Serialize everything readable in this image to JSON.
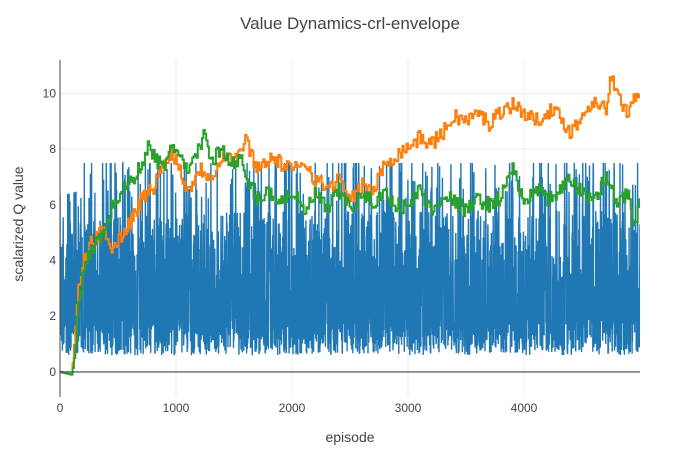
{
  "chart_data": {
    "type": "line",
    "title": "Value Dynamics-crl-envelope",
    "xlabel": "episode",
    "ylabel": "scalarized Q value",
    "xlim": [
      0,
      5000
    ],
    "ylim": [
      -0.9,
      11.2
    ],
    "grid": true,
    "legend": "none",
    "xticks": [
      0,
      1000,
      2000,
      3000,
      4000
    ],
    "yticks": [
      0,
      2,
      4,
      6,
      8,
      10
    ],
    "series": [
      {
        "color": "#1f77b4",
        "style": "noisy-band",
        "x": [
          0,
          100,
          150,
          200,
          500,
          1000,
          2000,
          3000,
          4000,
          5000
        ],
        "low": [
          0.6,
          0.6,
          0.6,
          0.6,
          0.6,
          0.6,
          0.6,
          0.6,
          0.6,
          0.6
        ],
        "high": [
          4.8,
          5.0,
          5.3,
          5.5,
          5.7,
          5.7,
          5.8,
          5.8,
          5.8,
          5.8
        ],
        "spike_max": [
          6.4,
          6.4,
          6.5,
          7.5,
          7.5,
          7.5,
          7.5,
          7.5,
          7.5,
          7.5
        ]
      },
      {
        "color": "#ff7f0e",
        "x": [
          0,
          100,
          130,
          150,
          200,
          250,
          300,
          380,
          420,
          450,
          500,
          600,
          700,
          800,
          850,
          950,
          1000,
          1100,
          1200,
          1300,
          1400,
          1500,
          1600,
          1700,
          1800,
          1900,
          2000,
          2100,
          2200,
          2300,
          2400,
          2500,
          2600,
          2700,
          2800,
          2900,
          3000,
          3100,
          3200,
          3300,
          3400,
          3500,
          3600,
          3700,
          3800,
          3900,
          4000,
          4100,
          4200,
          4300,
          4400,
          4500,
          4600,
          4700,
          4750,
          4800,
          4900,
          4950,
          5000
        ],
        "y": [
          0.0,
          -0.1,
          1.5,
          2.8,
          3.9,
          4.5,
          4.8,
          5.1,
          4.8,
          4.4,
          4.7,
          5.4,
          6.2,
          6.6,
          7.1,
          7.9,
          7.6,
          6.5,
          7.3,
          7.0,
          7.8,
          7.6,
          8.3,
          7.3,
          7.7,
          7.5,
          7.2,
          7.6,
          6.9,
          6.6,
          6.9,
          6.1,
          6.7,
          6.5,
          7.5,
          7.8,
          8.1,
          8.4,
          8.2,
          8.6,
          9.2,
          9.0,
          9.3,
          8.9,
          9.4,
          9.6,
          9.3,
          9.0,
          9.4,
          9.2,
          8.6,
          9.2,
          9.8,
          9.4,
          10.6,
          9.9,
          9.3,
          9.9,
          10.2
        ]
      },
      {
        "color": "#2ca02c",
        "x": [
          0,
          100,
          130,
          150,
          200,
          250,
          300,
          350,
          400,
          450,
          500,
          600,
          700,
          750,
          800,
          900,
          950,
          1000,
          1050,
          1100,
          1200,
          1250,
          1300,
          1400,
          1500,
          1550,
          1600,
          1700,
          1800,
          1900,
          2000,
          2100,
          2200,
          2300,
          2400,
          2500,
          2600,
          2700,
          2800,
          2900,
          3000,
          3100,
          3200,
          3300,
          3400,
          3500,
          3600,
          3700,
          3800,
          3900,
          4000,
          4100,
          4200,
          4300,
          4400,
          4500,
          4600,
          4700,
          4800,
          4900,
          4950,
          5000
        ],
        "y": [
          0.0,
          -0.1,
          0.8,
          2.5,
          3.5,
          4.2,
          4.6,
          4.9,
          5.2,
          6.0,
          6.3,
          6.8,
          7.4,
          8.1,
          7.8,
          7.2,
          8.3,
          7.9,
          7.6,
          7.0,
          8.2,
          8.5,
          7.6,
          8.0,
          7.4,
          7.7,
          6.9,
          6.2,
          6.5,
          6.1,
          6.5,
          5.7,
          6.4,
          5.8,
          6.5,
          5.9,
          6.3,
          6.1,
          6.4,
          6.0,
          5.9,
          6.6,
          5.7,
          6.4,
          6.1,
          5.8,
          6.2,
          6.0,
          6.3,
          7.4,
          5.9,
          6.7,
          6.1,
          6.5,
          6.9,
          6.4,
          6.2,
          7.0,
          6.1,
          6.4,
          5.0,
          6.4
        ]
      }
    ]
  }
}
